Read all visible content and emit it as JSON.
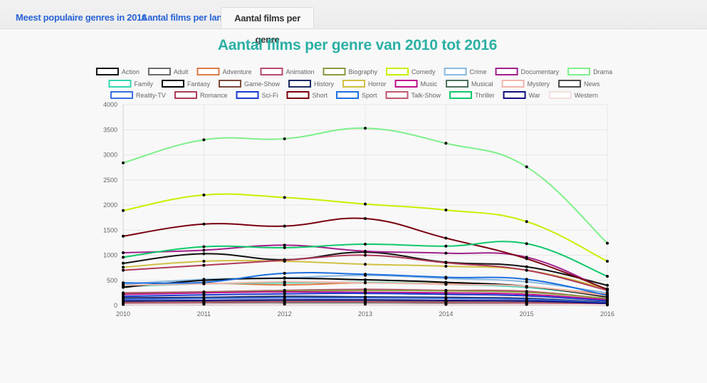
{
  "tabs": [
    {
      "label": "Meest populaire genres in 2016",
      "active": false
    },
    {
      "label": "Aantal films per land",
      "active": false
    },
    {
      "label": "Aantal films per genre",
      "active": true
    }
  ],
  "colors": {
    "tab_link": "#2a64d6",
    "title": "#2bb0a5"
  },
  "chart_data": {
    "type": "line",
    "title": "Aantal films per genre van 2010 tot 2016",
    "x": [
      "2010",
      "2011",
      "2012",
      "2013",
      "2014",
      "2015",
      "2016"
    ],
    "ylim": [
      0,
      4000
    ],
    "yticks": [
      0,
      500,
      1000,
      1500,
      2000,
      2500,
      3000,
      3500,
      4000
    ],
    "grid": true,
    "legend_position": "top",
    "series": [
      {
        "name": "Action",
        "color": "#111111",
        "values": [
          840,
          1030,
          910,
          1060,
          860,
          770,
          400
        ]
      },
      {
        "name": "Adult",
        "color": "#6b6b6b",
        "values": [
          20,
          25,
          30,
          30,
          25,
          20,
          10
        ]
      },
      {
        "name": "Adventure",
        "color": "#e07a48",
        "values": [
          380,
          440,
          410,
          450,
          430,
          370,
          220
        ]
      },
      {
        "name": "Animation",
        "color": "#b84a6a",
        "values": [
          250,
          270,
          300,
          320,
          300,
          280,
          130
        ]
      },
      {
        "name": "Biography",
        "color": "#8a9a40",
        "values": [
          230,
          260,
          290,
          300,
          290,
          260,
          140
        ]
      },
      {
        "name": "Comedy",
        "color": "#c6f000",
        "values": [
          1890,
          2200,
          2150,
          2020,
          1900,
          1670,
          880
        ]
      },
      {
        "name": "Crime",
        "color": "#88b9e0",
        "values": [
          420,
          520,
          550,
          600,
          540,
          470,
          250
        ]
      },
      {
        "name": "Documentary",
        "color": "#a0208a",
        "values": [
          1050,
          1100,
          1200,
          1080,
          1040,
          960,
          300
        ]
      },
      {
        "name": "Drama",
        "color": "#7ef08a",
        "values": [
          2840,
          3300,
          3320,
          3530,
          3230,
          2760,
          1240
        ]
      },
      {
        "name": "Family",
        "color": "#35d6b0",
        "values": [
          380,
          430,
          450,
          460,
          420,
          360,
          180
        ]
      },
      {
        "name": "Fantasy",
        "color": "#000000",
        "values": [
          360,
          500,
          540,
          510,
          460,
          380,
          170
        ]
      },
      {
        "name": "Game-Show",
        "color": "#7b4a3a",
        "values": [
          60,
          70,
          80,
          80,
          70,
          60,
          20
        ]
      },
      {
        "name": "History",
        "color": "#1c2a60",
        "values": [
          150,
          160,
          180,
          170,
          160,
          140,
          60
        ]
      },
      {
        "name": "Horror",
        "color": "#d0c044",
        "values": [
          760,
          880,
          880,
          820,
          780,
          700,
          330
        ]
      },
      {
        "name": "Music",
        "color": "#c0108a",
        "values": [
          220,
          250,
          270,
          260,
          250,
          220,
          110
        ]
      },
      {
        "name": "Musical",
        "color": "#4f7060",
        "values": [
          30,
          35,
          40,
          40,
          35,
          30,
          10
        ]
      },
      {
        "name": "Mystery",
        "color": "#f2b6ae",
        "values": [
          400,
          430,
          470,
          450,
          420,
          380,
          190
        ]
      },
      {
        "name": "News",
        "color": "#4b4b4b",
        "values": [
          60,
          70,
          80,
          80,
          70,
          60,
          20
        ]
      },
      {
        "name": "Reality-TV",
        "color": "#3a6fe0",
        "values": [
          120,
          140,
          150,
          150,
          140,
          120,
          50
        ]
      },
      {
        "name": "Romance",
        "color": "#b03a58",
        "values": [
          700,
          800,
          900,
          1000,
          850,
          700,
          300
        ]
      },
      {
        "name": "Sci-Fi",
        "color": "#1a3ad0",
        "values": [
          180,
          210,
          230,
          240,
          220,
          190,
          90
        ]
      },
      {
        "name": "Short",
        "color": "#7a0010",
        "values": [
          1380,
          1620,
          1580,
          1730,
          1340,
          930,
          320
        ]
      },
      {
        "name": "Sport",
        "color": "#1e70e0",
        "values": [
          450,
          460,
          640,
          620,
          560,
          520,
          200
        ]
      },
      {
        "name": "Talk-Show",
        "color": "#c05870",
        "values": [
          50,
          60,
          70,
          70,
          60,
          50,
          20
        ]
      },
      {
        "name": "Thriller",
        "color": "#10c86a",
        "values": [
          960,
          1170,
          1150,
          1220,
          1180,
          1230,
          580
        ]
      },
      {
        "name": "War",
        "color": "#101080",
        "values": [
          90,
          100,
          110,
          110,
          100,
          90,
          40
        ]
      },
      {
        "name": "Western",
        "color": "#f3dede",
        "values": [
          20,
          25,
          25,
          25,
          20,
          20,
          10
        ]
      }
    ]
  }
}
